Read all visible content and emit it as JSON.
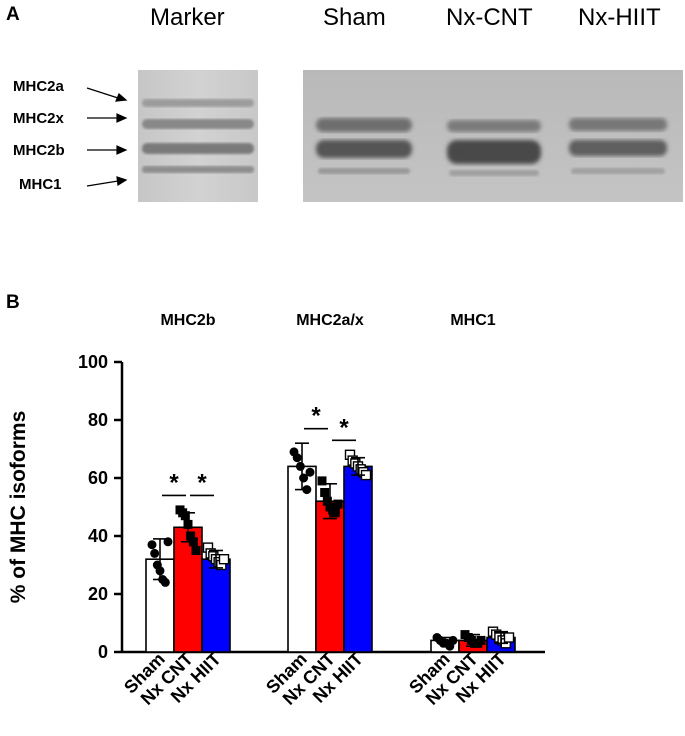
{
  "panel_a": {
    "letter": "A",
    "lane_titles": [
      "Marker",
      "Sham",
      "Nx-CNT",
      "Nx-HIIT"
    ],
    "band_labels": [
      "MHC2a",
      "MHC2x",
      "MHC2b",
      "MHC1"
    ]
  },
  "panel_b": {
    "letter": "B"
  },
  "chart_data": {
    "type": "bar",
    "groups": [
      "MHC2b",
      "MHC2a/x",
      "MHC1"
    ],
    "categories": [
      "Sham",
      "Nx CNT",
      "Nx HIIT"
    ],
    "ylabel": "% of  MHC  isoforms",
    "ylim": [
      0,
      100
    ],
    "yticks": [
      0,
      20,
      40,
      60,
      80,
      100
    ],
    "colors": [
      "#ffffff",
      "#ff0000",
      "#0000ff"
    ],
    "markers": [
      "filled-circle",
      "filled-square",
      "open-square"
    ],
    "series": [
      {
        "values": [
          32,
          43,
          32
        ],
        "errors": [
          7,
          5,
          3
        ],
        "points": [
          [
            37,
            34,
            30,
            28,
            25,
            24,
            38
          ],
          [
            49,
            48,
            47,
            44,
            40,
            38,
            35
          ],
          [
            36,
            34,
            33,
            32,
            31,
            30,
            32
          ]
        ]
      },
      {
        "values": [
          64,
          52,
          64
        ],
        "errors": [
          8,
          6,
          3
        ],
        "points": [
          [
            69,
            67,
            64,
            60,
            56,
            62
          ],
          [
            59,
            55,
            52,
            50,
            49,
            48,
            51
          ],
          [
            68,
            66,
            65,
            64,
            63,
            62,
            61
          ]
        ]
      },
      {
        "values": [
          4,
          4,
          5
        ],
        "errors": [
          1,
          2,
          2
        ],
        "points": [
          [
            5,
            4,
            3,
            3,
            2,
            4
          ],
          [
            6,
            5,
            4,
            3,
            3,
            4
          ],
          [
            7,
            6,
            5,
            4,
            3,
            5
          ]
        ]
      }
    ],
    "significance": [
      {
        "group": 0,
        "from": 0,
        "to": 1,
        "label": "*"
      },
      {
        "group": 0,
        "from": 1,
        "to": 2,
        "label": "*"
      },
      {
        "group": 1,
        "from": 0,
        "to": 1,
        "label": "*"
      },
      {
        "group": 1,
        "from": 1,
        "to": 2,
        "label": "*"
      }
    ]
  }
}
